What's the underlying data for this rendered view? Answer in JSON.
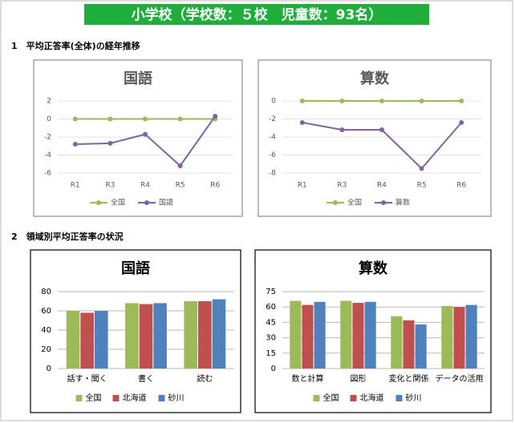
{
  "header": {
    "title": "小学校（学校数：５校　児童数：93名）"
  },
  "sections": [
    "1　平均正答率(全体)の経年推移",
    "2　領域別平均正答率の状況"
  ],
  "chart_data": [
    {
      "type": "line",
      "title": "国語",
      "categories": [
        "R1",
        "R3",
        "R4",
        "R5",
        "R6"
      ],
      "series": [
        {
          "name": "全国",
          "color": "#9bbb59",
          "values": [
            0,
            0,
            0,
            0,
            0
          ]
        },
        {
          "name": "国語",
          "color": "#8064a2",
          "values": [
            -2.8,
            -2.7,
            -1.7,
            -5.2,
            0.3
          ]
        }
      ],
      "ylim": [
        -6,
        2
      ],
      "yticks": [
        -6,
        -4,
        -2,
        0,
        2
      ],
      "grid": true
    },
    {
      "type": "line",
      "title": "算数",
      "categories": [
        "R1",
        "R3",
        "R4",
        "R5",
        "R6"
      ],
      "series": [
        {
          "name": "全国",
          "color": "#9bbb59",
          "values": [
            0,
            0,
            0,
            0,
            0
          ]
        },
        {
          "name": "算数",
          "color": "#8064a2",
          "values": [
            -2.4,
            -3.2,
            -3.2,
            -7.5,
            -2.4
          ]
        }
      ],
      "ylim": [
        -8,
        0
      ],
      "yticks": [
        -8,
        -6,
        -4,
        -2,
        0
      ],
      "grid": true
    },
    {
      "type": "bar",
      "title": "国語",
      "categories": [
        "話す・聞く",
        "書く",
        "読む"
      ],
      "series": [
        {
          "name": "全国",
          "color": "#9bbb59",
          "values": [
            60,
            68,
            70
          ]
        },
        {
          "name": "北海道",
          "color": "#c0504d",
          "values": [
            58,
            67,
            70
          ]
        },
        {
          "name": "砂川",
          "color": "#4f81bd",
          "values": [
            60,
            68,
            72
          ]
        }
      ],
      "ylim": [
        0,
        80
      ],
      "yticks": [
        0,
        20,
        40,
        60,
        80
      ],
      "grid": true
    },
    {
      "type": "bar",
      "title": "算数",
      "categories": [
        "数と計算",
        "図形",
        "変化と関係",
        "データの活用"
      ],
      "series": [
        {
          "name": "全国",
          "color": "#9bbb59",
          "values": [
            66,
            66,
            51,
            61
          ]
        },
        {
          "name": "北海道",
          "color": "#c0504d",
          "values": [
            62,
            64,
            47,
            60
          ]
        },
        {
          "name": "砂川",
          "color": "#4f81bd",
          "values": [
            65,
            65,
            43,
            62
          ]
        }
      ],
      "ylim": [
        0,
        75
      ],
      "yticks": [
        0,
        15,
        30,
        45,
        60,
        75
      ],
      "grid": true
    }
  ]
}
